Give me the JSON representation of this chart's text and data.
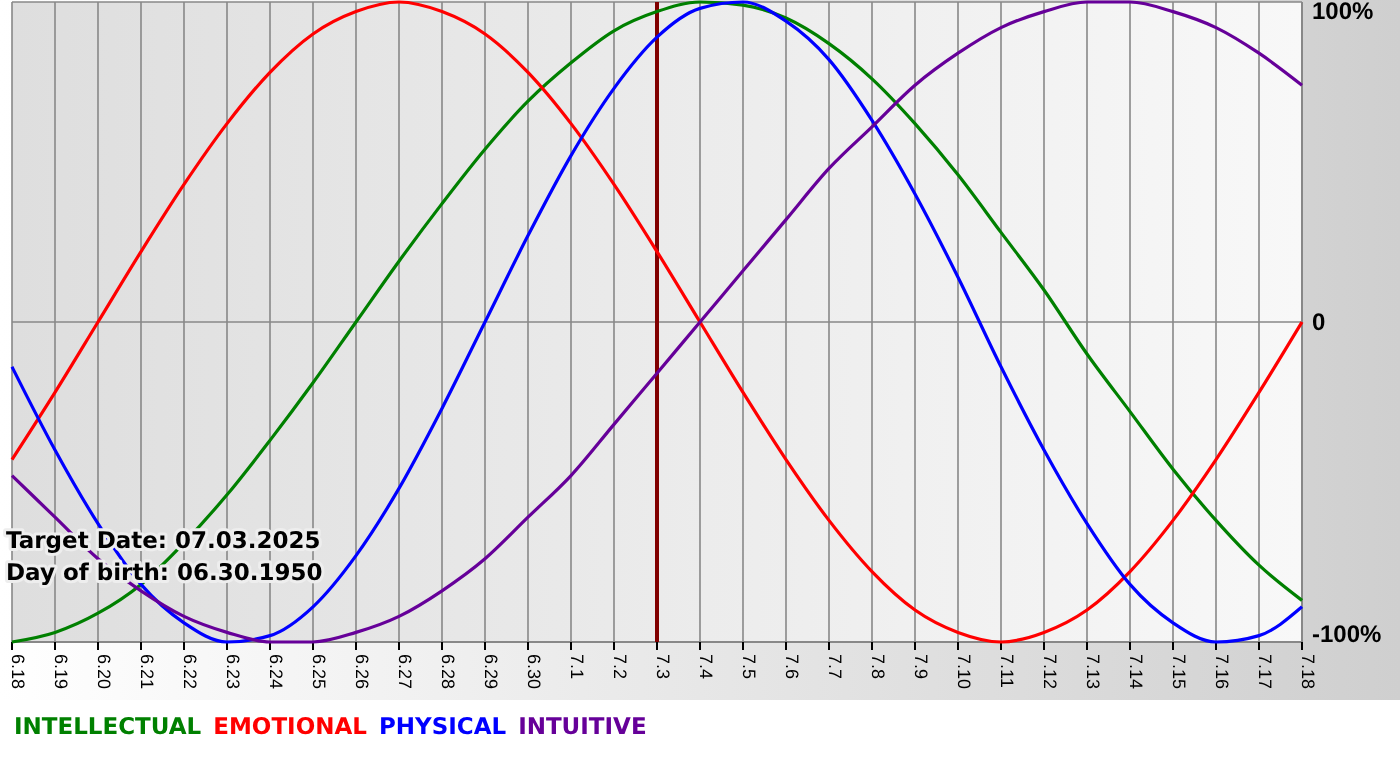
{
  "chart_data": {
    "type": "line",
    "categories": [
      "6.18",
      "6.19",
      "6.20",
      "6.21",
      "6.22",
      "6.23",
      "6.24",
      "6.25",
      "6.26",
      "6.27",
      "6.28",
      "6.29",
      "6.30",
      "7.1",
      "7.2",
      "7.3",
      "7.4",
      "7.5",
      "7.6",
      "7.7",
      "7.8",
      "7.9",
      "7.10",
      "7.11",
      "7.12",
      "7.13",
      "7.14",
      "7.15",
      "7.16",
      "7.17",
      "7.18"
    ],
    "series": [
      {
        "name": "INTELLECTUAL",
        "color": "#008000",
        "values": [
          -100,
          -97,
          -91,
          -82,
          -69,
          -54,
          -37,
          -19,
          0,
          19,
          37,
          54,
          69,
          81,
          91,
          97,
          100,
          99,
          95,
          87,
          76,
          62,
          46,
          28,
          10,
          -10,
          -28,
          -46,
          -62,
          -76,
          -87
        ]
      },
      {
        "name": "EMOTIONAL",
        "color": "#ff0000",
        "values": [
          -43,
          -22,
          0,
          22,
          43,
          62,
          78,
          90,
          97,
          100,
          97,
          90,
          78,
          62,
          43,
          22,
          0,
          -22,
          -43,
          -62,
          -78,
          -90,
          -97,
          -100,
          -97,
          -90,
          -78,
          -62,
          -43,
          -22,
          0
        ]
      },
      {
        "name": "PHYSICAL",
        "color": "#0000ff",
        "values": [
          -14,
          -40,
          -63,
          -82,
          -94,
          -100,
          -98,
          -89,
          -73,
          -52,
          -27,
          0,
          27,
          52,
          73,
          89,
          98,
          100,
          94,
          82,
          63,
          40,
          14,
          -14,
          -40,
          -63,
          -82,
          -94,
          -100,
          -98,
          -89
        ]
      },
      {
        "name": "INTUITIVE",
        "color": "#660099",
        "values": [
          -48,
          -61,
          -74,
          -84,
          -92,
          -97,
          -100,
          -100,
          -97,
          -92,
          -84,
          -74,
          -61,
          -48,
          -32,
          -16,
          0,
          16,
          32,
          48,
          61,
          74,
          84,
          92,
          97,
          100,
          100,
          97,
          92,
          84,
          74
        ]
      }
    ],
    "ylim": [
      -100,
      100
    ],
    "yticks": [
      {
        "value": 100,
        "label": "100%"
      },
      0,
      {
        "value": -100,
        "label": "-100%"
      }
    ],
    "grid": true,
    "legend": "bottom",
    "marker": "none",
    "line_style": "solid",
    "ref_lines": [
      {
        "axis": "x",
        "value": "7.3",
        "color": "#800000"
      }
    ],
    "annotations": [
      "Target Date: 07.03.2025",
      "Day of birth: 06.30.1950"
    ]
  }
}
